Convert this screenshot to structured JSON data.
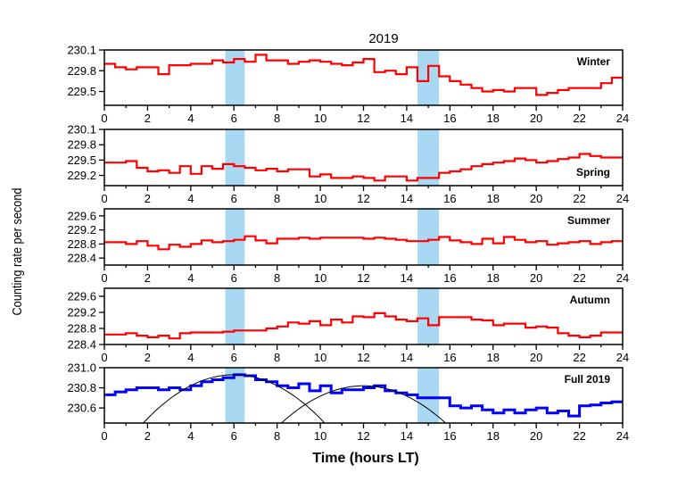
{
  "chart_data": {
    "type": "line",
    "title": "2019",
    "xlabel": "Time (hours LT)",
    "ylabel": "Counting rate per second",
    "xlim": [
      0,
      24
    ],
    "xticks": [
      "0",
      "2",
      "4",
      "6",
      "8",
      "10",
      "12",
      "14",
      "16",
      "18",
      "20",
      "22",
      "24"
    ],
    "highlight_bands": [
      [
        5.6,
        6.5
      ],
      [
        14.5,
        15.5
      ]
    ],
    "panels": [
      {
        "name": "Winter",
        "color": "#ff0000",
        "ylim": [
          229.3,
          230.1
        ],
        "yticks": [
          "230.1",
          "229.8",
          "229.5"
        ],
        "ytick_values": [
          230.1,
          229.8,
          229.5
        ],
        "x": [
          0,
          0.5,
          1,
          1.5,
          2,
          2.5,
          3,
          3.5,
          4,
          4.5,
          5,
          5.5,
          6,
          6.5,
          7,
          7.5,
          8,
          8.5,
          9,
          9.5,
          10,
          10.5,
          11,
          11.5,
          12,
          12.5,
          13,
          13.5,
          14,
          14.5,
          15,
          15.5,
          16,
          16.5,
          17,
          17.5,
          18,
          18.5,
          19,
          19.5,
          20,
          20.5,
          21,
          21.5,
          22,
          22.5,
          23,
          23.5
        ],
        "y": [
          229.9,
          229.85,
          229.82,
          229.85,
          229.85,
          229.75,
          229.88,
          229.88,
          229.9,
          229.9,
          229.95,
          229.92,
          229.97,
          229.93,
          230.03,
          229.95,
          229.95,
          229.9,
          229.93,
          229.95,
          229.93,
          229.9,
          229.88,
          229.92,
          229.97,
          229.78,
          229.8,
          229.75,
          229.85,
          229.65,
          229.87,
          229.72,
          229.65,
          229.6,
          229.55,
          229.5,
          229.52,
          229.5,
          229.55,
          229.55,
          229.45,
          229.48,
          229.52,
          229.55,
          229.55,
          229.55,
          229.62,
          229.7
        ]
      },
      {
        "name": "Spring",
        "color": "#ff0000",
        "ylim": [
          229.0,
          230.1
        ],
        "yticks": [
          "230.1",
          "229.8",
          "229.5",
          "229.2"
        ],
        "ytick_values": [
          230.1,
          229.8,
          229.5,
          229.2
        ],
        "x": [
          0,
          0.5,
          1,
          1.5,
          2,
          2.5,
          3,
          3.5,
          4,
          4.5,
          5,
          5.5,
          6,
          6.5,
          7,
          7.5,
          8,
          8.5,
          9,
          9.5,
          10,
          10.5,
          11,
          11.5,
          12,
          12.5,
          13,
          13.5,
          14,
          14.5,
          15,
          15.5,
          16,
          16.5,
          17,
          17.5,
          18,
          18.5,
          19,
          19.5,
          20,
          20.5,
          21,
          21.5,
          22,
          22.5,
          23,
          23.5
        ],
        "y": [
          229.45,
          229.45,
          229.48,
          229.35,
          229.28,
          229.3,
          229.25,
          229.38,
          229.23,
          229.38,
          229.33,
          229.42,
          229.38,
          229.35,
          229.3,
          229.33,
          229.28,
          229.32,
          229.32,
          229.18,
          229.22,
          229.15,
          229.15,
          229.18,
          229.15,
          229.1,
          229.18,
          229.18,
          229.1,
          229.15,
          229.15,
          229.25,
          229.28,
          229.32,
          229.38,
          229.42,
          229.45,
          229.48,
          229.53,
          229.5,
          229.45,
          229.48,
          229.52,
          229.55,
          229.62,
          229.58,
          229.55,
          229.55
        ]
      },
      {
        "name": "Summer",
        "color": "#ff0000",
        "ylim": [
          228.2,
          229.8
        ],
        "yticks": [
          "229.6",
          "229.2",
          "228.8",
          "228.4"
        ],
        "ytick_values": [
          229.6,
          229.2,
          228.8,
          228.4
        ],
        "x": [
          0,
          0.5,
          1,
          1.5,
          2,
          2.5,
          3,
          3.5,
          4,
          4.5,
          5,
          5.5,
          6,
          6.5,
          7,
          7.5,
          8,
          8.5,
          9,
          9.5,
          10,
          10.5,
          11,
          11.5,
          12,
          12.5,
          13,
          13.5,
          14,
          14.5,
          15,
          15.5,
          16,
          16.5,
          17,
          17.5,
          18,
          18.5,
          19,
          19.5,
          20,
          20.5,
          21,
          21.5,
          22,
          22.5,
          23,
          23.5
        ],
        "y": [
          228.85,
          228.85,
          228.8,
          228.88,
          228.75,
          228.65,
          228.78,
          228.72,
          228.8,
          228.9,
          228.85,
          228.88,
          228.92,
          229.02,
          228.9,
          228.82,
          228.95,
          228.95,
          228.98,
          228.95,
          228.98,
          228.98,
          228.98,
          228.98,
          228.95,
          228.98,
          228.95,
          228.92,
          228.88,
          228.88,
          228.92,
          229.0,
          228.9,
          228.85,
          228.8,
          228.95,
          228.82,
          229.0,
          228.92,
          228.85,
          228.88,
          228.78,
          228.82,
          228.85,
          228.88,
          228.8,
          228.85,
          228.88
        ]
      },
      {
        "name": "Autumn",
        "color": "#ff0000",
        "ylim": [
          228.4,
          229.8
        ],
        "yticks": [
          "229.6",
          "229.2",
          "228.8",
          "228.4"
        ],
        "ytick_values": [
          229.6,
          229.2,
          228.8,
          228.4
        ],
        "x": [
          0,
          0.5,
          1,
          1.5,
          2,
          2.5,
          3,
          3.5,
          4,
          4.5,
          5,
          5.5,
          6,
          6.5,
          7,
          7.5,
          8,
          8.5,
          9,
          9.5,
          10,
          10.5,
          11,
          11.5,
          12,
          12.5,
          13,
          13.5,
          14,
          14.5,
          15,
          15.5,
          16,
          16.5,
          17,
          17.5,
          18,
          18.5,
          19,
          19.5,
          20,
          20.5,
          21,
          21.5,
          22,
          22.5,
          23,
          23.5
        ],
        "y": [
          228.65,
          228.65,
          228.68,
          228.62,
          228.58,
          228.62,
          228.55,
          228.68,
          228.7,
          228.7,
          228.7,
          228.72,
          228.75,
          228.75,
          228.75,
          228.8,
          228.85,
          228.95,
          228.92,
          228.98,
          228.88,
          229.02,
          228.95,
          229.1,
          229.08,
          229.18,
          229.1,
          229.02,
          228.98,
          229.05,
          228.88,
          229.08,
          229.08,
          229.08,
          229.02,
          229.0,
          228.88,
          228.92,
          228.92,
          228.82,
          228.85,
          228.82,
          228.68,
          228.62,
          228.58,
          228.62,
          228.7,
          228.7
        ]
      },
      {
        "name": "Full 2019",
        "color": "#0000ff",
        "ylim": [
          230.45,
          231.0
        ],
        "yticks": [
          "231.0",
          "230.8",
          "230.6"
        ],
        "ytick_values": [
          231.0,
          230.8,
          230.6
        ],
        "x": [
          0,
          0.5,
          1,
          1.5,
          2,
          2.5,
          3,
          3.5,
          4,
          4.5,
          5,
          5.5,
          6,
          6.5,
          7,
          7.5,
          8,
          8.5,
          9,
          9.5,
          10,
          10.5,
          11,
          11.5,
          12,
          12.5,
          13,
          13.5,
          14,
          14.5,
          15,
          15.5,
          16,
          16.5,
          17,
          17.5,
          18,
          18.5,
          19,
          19.5,
          20,
          20.5,
          21,
          21.5,
          22,
          22.5,
          23,
          23.5
        ],
        "y": [
          230.73,
          230.76,
          230.78,
          230.8,
          230.8,
          230.78,
          230.8,
          230.78,
          230.82,
          230.86,
          230.88,
          230.9,
          230.93,
          230.92,
          230.88,
          230.86,
          230.82,
          230.8,
          230.84,
          230.77,
          230.82,
          230.75,
          230.78,
          230.78,
          230.8,
          230.82,
          230.77,
          230.75,
          230.73,
          230.7,
          230.7,
          230.7,
          230.62,
          230.6,
          230.62,
          230.58,
          230.55,
          230.58,
          230.55,
          230.58,
          230.6,
          230.55,
          230.57,
          230.52,
          230.62,
          230.63,
          230.65,
          230.66
        ]
      }
    ],
    "fit_curves": [
      {
        "center": 6.0,
        "peak": 230.93,
        "halfwidth": 4.2
      },
      {
        "center": 12.0,
        "peak": 230.82,
        "halfwidth": 3.8
      }
    ]
  }
}
